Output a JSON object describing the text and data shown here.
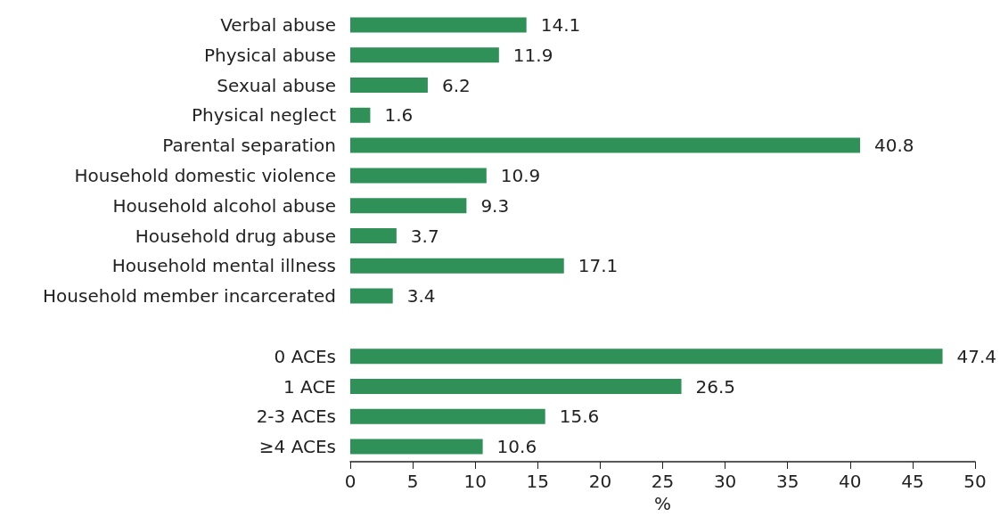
{
  "chart_data": {
    "type": "bar",
    "orientation": "horizontal",
    "xlabel": "%",
    "categories": [
      "Verbal abuse",
      "Physical abuse",
      "Sexual abuse",
      "Physical neglect",
      "Parental separation",
      "Household domestic violence",
      "Household alcohol abuse",
      "Household drug abuse",
      "Household mental illness",
      "Household member incarcerated",
      null,
      "0 ACEs",
      "1 ACE",
      "2-3 ACEs",
      "≥4 ACEs"
    ],
    "values": [
      14.1,
      11.9,
      6.2,
      1.6,
      40.8,
      10.9,
      9.3,
      3.7,
      17.1,
      3.4,
      null,
      47.4,
      26.5,
      15.6,
      10.6
    ],
    "color": "#2f9158",
    "xlim": [
      0,
      50
    ],
    "xticks": [
      0,
      5,
      10,
      15,
      20,
      25,
      30,
      35,
      40,
      45,
      50
    ],
    "grid": false,
    "data_labels": true
  }
}
